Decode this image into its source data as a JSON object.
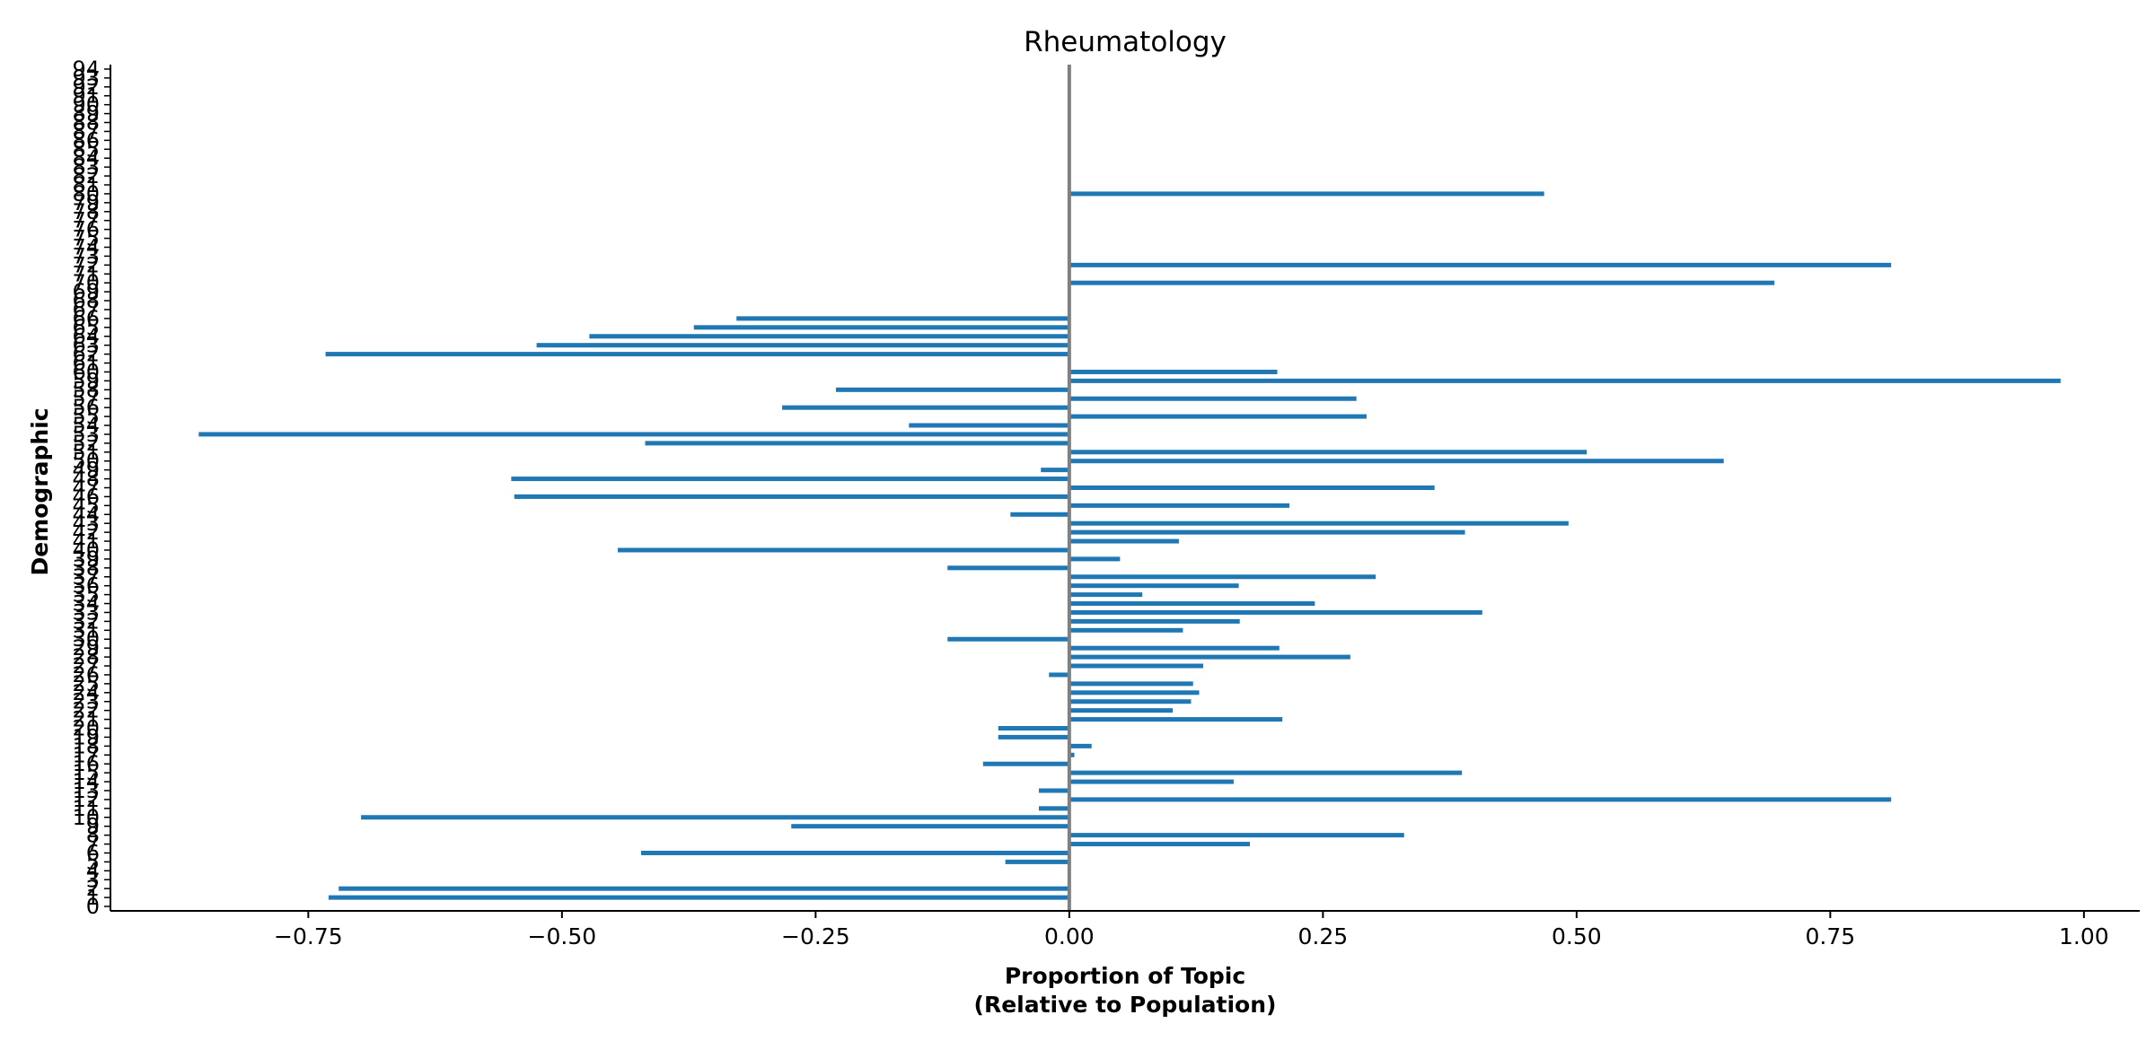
{
  "chart_data": {
    "type": "bar",
    "orientation": "horizontal",
    "title": "Rheumatology",
    "xlabel_line1": "Proportion of Topic",
    "xlabel_line2": "(Relative to Population)",
    "ylabel": "Demographic",
    "xlim": [
      -0.945,
      1.055
    ],
    "ylim": [
      -0.5,
      94.5
    ],
    "x_ticks": [
      -0.75,
      -0.5,
      -0.25,
      0.0,
      0.25,
      0.5,
      0.75,
      1.0
    ],
    "x_tick_labels": [
      "−0.75",
      "−0.50",
      "−0.25",
      "0.00",
      "0.25",
      "0.50",
      "0.75",
      "1.00"
    ],
    "y_ticks": [
      0,
      1,
      2,
      3,
      4,
      5,
      6,
      7,
      8,
      9,
      10,
      11,
      12,
      13,
      14,
      15,
      16,
      17,
      18,
      19,
      20,
      21,
      22,
      23,
      24,
      25,
      26,
      27,
      28,
      29,
      30,
      31,
      32,
      33,
      34,
      35,
      36,
      37,
      38,
      39,
      40,
      41,
      42,
      43,
      44,
      45,
      46,
      47,
      48,
      49,
      50,
      51,
      52,
      53,
      54,
      55,
      56,
      57,
      58,
      59,
      60,
      61,
      62,
      63,
      64,
      65,
      66,
      67,
      68,
      69,
      70,
      71,
      72,
      73,
      74,
      75,
      76,
      77,
      78,
      79,
      80,
      81,
      82,
      83,
      84,
      85,
      86,
      87,
      88,
      89,
      90,
      91,
      92,
      93,
      94
    ],
    "bar_color": "#1f77b4",
    "zero_line_color": "#808080",
    "grid": false,
    "bars": [
      {
        "y": 1,
        "value": -0.73
      },
      {
        "y": 2,
        "value": -0.72
      },
      {
        "y": 5,
        "value": -0.063
      },
      {
        "y": 6,
        "value": -0.422
      },
      {
        "y": 7,
        "value": 0.178
      },
      {
        "y": 8,
        "value": 0.33
      },
      {
        "y": 9,
        "value": -0.274
      },
      {
        "y": 10,
        "value": -0.698
      },
      {
        "y": 11,
        "value": -0.03
      },
      {
        "y": 12,
        "value": 0.81
      },
      {
        "y": 13,
        "value": -0.03
      },
      {
        "y": 14,
        "value": 0.162
      },
      {
        "y": 15,
        "value": 0.387
      },
      {
        "y": 16,
        "value": -0.085
      },
      {
        "y": 17,
        "value": 0.005
      },
      {
        "y": 18,
        "value": 0.022
      },
      {
        "y": 19,
        "value": -0.07
      },
      {
        "y": 20,
        "value": -0.07
      },
      {
        "y": 21,
        "value": 0.21
      },
      {
        "y": 22,
        "value": 0.102
      },
      {
        "y": 23,
        "value": 0.12
      },
      {
        "y": 24,
        "value": 0.128
      },
      {
        "y": 25,
        "value": 0.122
      },
      {
        "y": 26,
        "value": -0.02
      },
      {
        "y": 27,
        "value": 0.132
      },
      {
        "y": 28,
        "value": 0.277
      },
      {
        "y": 29,
        "value": 0.207
      },
      {
        "y": 30,
        "value": -0.12
      },
      {
        "y": 31,
        "value": 0.112
      },
      {
        "y": 32,
        "value": 0.168
      },
      {
        "y": 33,
        "value": 0.407
      },
      {
        "y": 34,
        "value": 0.242
      },
      {
        "y": 35,
        "value": 0.072
      },
      {
        "y": 36,
        "value": 0.167
      },
      {
        "y": 37,
        "value": 0.302
      },
      {
        "y": 38,
        "value": -0.12
      },
      {
        "y": 39,
        "value": 0.05
      },
      {
        "y": 40,
        "value": -0.445
      },
      {
        "y": 41,
        "value": 0.108
      },
      {
        "y": 42,
        "value": 0.39
      },
      {
        "y": 43,
        "value": 0.492
      },
      {
        "y": 44,
        "value": -0.058
      },
      {
        "y": 45,
        "value": 0.217
      },
      {
        "y": 46,
        "value": -0.547
      },
      {
        "y": 47,
        "value": 0.36
      },
      {
        "y": 48,
        "value": -0.55
      },
      {
        "y": 49,
        "value": -0.028
      },
      {
        "y": 50,
        "value": 0.645
      },
      {
        "y": 51,
        "value": 0.51
      },
      {
        "y": 52,
        "value": -0.418
      },
      {
        "y": 53,
        "value": -0.858
      },
      {
        "y": 54,
        "value": -0.158
      },
      {
        "y": 55,
        "value": 0.293
      },
      {
        "y": 56,
        "value": -0.283
      },
      {
        "y": 57,
        "value": 0.283
      },
      {
        "y": 58,
        "value": -0.23
      },
      {
        "y": 59,
        "value": 0.977
      },
      {
        "y": 60,
        "value": 0.205
      },
      {
        "y": 62,
        "value": -0.733
      },
      {
        "y": 63,
        "value": -0.525
      },
      {
        "y": 64,
        "value": -0.473
      },
      {
        "y": 65,
        "value": -0.37
      },
      {
        "y": 66,
        "value": -0.328
      },
      {
        "y": 70,
        "value": 0.695
      },
      {
        "y": 72,
        "value": 0.81
      },
      {
        "y": 80,
        "value": 0.468
      }
    ]
  }
}
